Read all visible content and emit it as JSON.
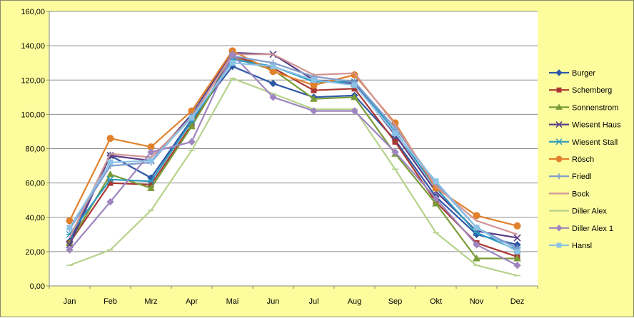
{
  "chart_data": {
    "type": "line",
    "title": "",
    "xlabel": "",
    "ylabel": "",
    "ylim": [
      0,
      160
    ],
    "y_ticks": [
      "0,00",
      "20,00",
      "40,00",
      "60,00",
      "80,00",
      "100,00",
      "120,00",
      "140,00",
      "160,00"
    ],
    "categories": [
      "Jan",
      "Feb",
      "Mrz",
      "Apr",
      "Mai",
      "Jun",
      "Jul",
      "Aug",
      "Sep",
      "Okt",
      "Nov",
      "Dez"
    ],
    "grid": "horizontal",
    "legend_position": "right",
    "plot_background": "#ffffff",
    "series": [
      {
        "name": "Burger",
        "color": "#2e58a6",
        "marker": "diamond",
        "values": [
          26,
          76,
          63,
          97,
          128,
          118,
          110,
          111,
          85,
          52,
          30,
          24
        ]
      },
      {
        "name": "Schemberg",
        "color": "#a93732",
        "marker": "square",
        "values": [
          25,
          60,
          59,
          94,
          134,
          127,
          114,
          115,
          84,
          49,
          25,
          17
        ]
      },
      {
        "name": "Sonnenstrom",
        "color": "#7a9c38",
        "marker": "triangle",
        "values": [
          25,
          65,
          57,
          93,
          133,
          126,
          109,
          110,
          77,
          48,
          16,
          16
        ]
      },
      {
        "name": "Wiesent Haus",
        "color": "#5a3d86",
        "marker": "x",
        "values": [
          24,
          76,
          73,
          100,
          136,
          135,
          120,
          118,
          88,
          55,
          32,
          28
        ]
      },
      {
        "name": "Wiesent Stall",
        "color": "#2a9ac0",
        "marker": "star",
        "values": [
          30,
          62,
          61,
          96,
          132,
          128,
          119,
          119,
          90,
          57,
          31,
          21
        ]
      },
      {
        "name": "Rösch",
        "color": "#e1812c",
        "marker": "circle",
        "values": [
          38,
          86,
          81,
          102,
          137,
          125,
          117,
          123,
          95,
          57,
          41,
          35
        ]
      },
      {
        "name": "Friedl",
        "color": "#7f9ccc",
        "marker": "plus",
        "values": [
          33,
          70,
          72,
          99,
          134,
          130,
          122,
          119,
          92,
          60,
          34,
          22
        ]
      },
      {
        "name": "Bock",
        "color": "#d29494",
        "marker": "none",
        "values": [
          28,
          77,
          75,
          98,
          135,
          135,
          123,
          124,
          94,
          58,
          38,
          30
        ]
      },
      {
        "name": "Diller Alex",
        "color": "#b6d38c",
        "marker": "dash",
        "values": [
          12,
          21,
          44,
          79,
          121,
          112,
          103,
          103,
          68,
          31,
          12,
          6
        ]
      },
      {
        "name": "Diller Alex 1",
        "color": "#9e85bf",
        "marker": "diamond",
        "values": [
          21,
          49,
          78,
          84,
          135,
          110,
          102,
          102,
          78,
          51,
          24,
          12
        ]
      },
      {
        "name": "Hansl",
        "color": "#8cc2e6",
        "marker": "square",
        "values": [
          34,
          72,
          73,
          98,
          130,
          128,
          120,
          117,
          89,
          61,
          34,
          20
        ]
      }
    ]
  }
}
